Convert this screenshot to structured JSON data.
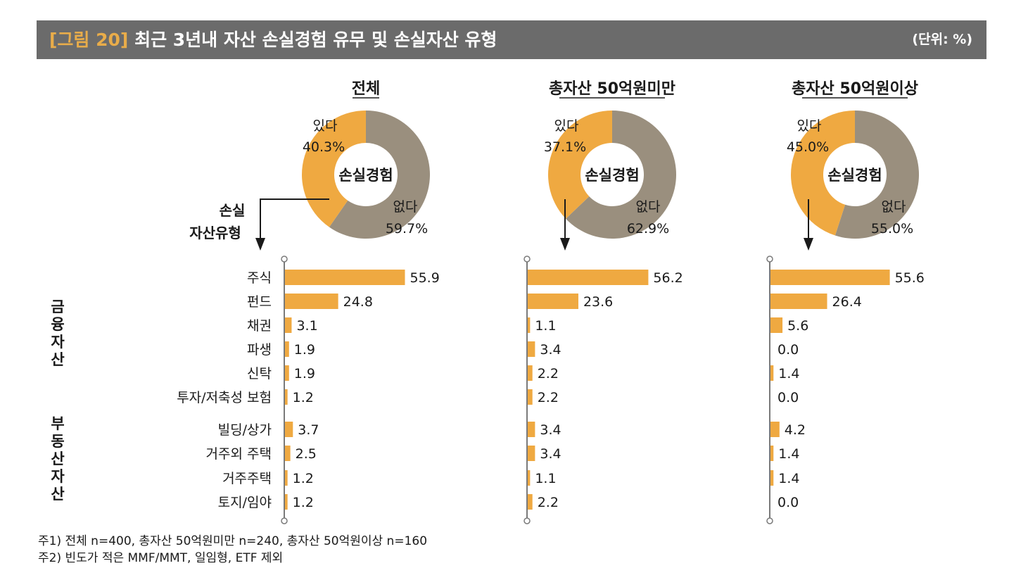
{
  "header": {
    "figure_label": "[그림 20]",
    "title": "최근 3년내 자산 손실경험 유무 및 손실자산 유형",
    "unit": "(단위: %)"
  },
  "colors": {
    "header_bg": "#6b6b6b",
    "figure_label": "#e8ac4a",
    "bar": "#efa941",
    "pie_yes": "#efa941",
    "pie_no": "#9a8f7e",
    "axis": "#7a7a7a"
  },
  "axis_label": "손실\n자산유형",
  "chart_data": {
    "type": "pie+bar",
    "panels": [
      {
        "title": "전체",
        "pie": {
          "center_label": "손실경험",
          "slices": [
            {
              "label": "있다",
              "value": 40.3,
              "text": "40.3%"
            },
            {
              "label": "없다",
              "value": 59.7,
              "text": "59.7%"
            }
          ]
        },
        "bars": [
          {
            "category": "주식",
            "value": 55.9,
            "label": "55.9"
          },
          {
            "category": "펀드",
            "value": 24.8,
            "label": "24.8"
          },
          {
            "category": "채권",
            "value": 3.1,
            "label": "3.1"
          },
          {
            "category": "파생",
            "value": 1.9,
            "label": "1.9"
          },
          {
            "category": "신탁",
            "value": 1.9,
            "label": "1.9"
          },
          {
            "category": "투자/저축성 보험",
            "value": 1.2,
            "label": "1.2"
          },
          {
            "category": "빌딩/상가",
            "value": 3.7,
            "label": "3.7"
          },
          {
            "category": "거주외 주택",
            "value": 2.5,
            "label": "2.5"
          },
          {
            "category": "거주주택",
            "value": 1.2,
            "label": "1.2"
          },
          {
            "category": "토지/임야",
            "value": 1.2,
            "label": "1.2"
          }
        ]
      },
      {
        "title": "총자산 50억원미만",
        "pie": {
          "center_label": "손실경험",
          "slices": [
            {
              "label": "있다",
              "value": 37.1,
              "text": "37.1%"
            },
            {
              "label": "없다",
              "value": 62.9,
              "text": "62.9%"
            }
          ]
        },
        "bars": [
          {
            "category": "주식",
            "value": 56.2,
            "label": "56.2"
          },
          {
            "category": "펀드",
            "value": 23.6,
            "label": "23.6"
          },
          {
            "category": "채권",
            "value": 1.1,
            "label": "1.1"
          },
          {
            "category": "파생",
            "value": 3.4,
            "label": "3.4"
          },
          {
            "category": "신탁",
            "value": 2.2,
            "label": "2.2"
          },
          {
            "category": "투자/저축성 보험",
            "value": 2.2,
            "label": "2.2"
          },
          {
            "category": "빌딩/상가",
            "value": 3.4,
            "label": "3.4"
          },
          {
            "category": "거주외 주택",
            "value": 3.4,
            "label": "3.4"
          },
          {
            "category": "거주주택",
            "value": 1.1,
            "label": "1.1"
          },
          {
            "category": "토지/임야",
            "value": 2.2,
            "label": "2.2"
          }
        ]
      },
      {
        "title": "총자산 50억원이상",
        "pie": {
          "center_label": "손실경험",
          "slices": [
            {
              "label": "있다",
              "value": 45.0,
              "text": "45.0%"
            },
            {
              "label": "없다",
              "value": 55.0,
              "text": "55.0%"
            }
          ]
        },
        "bars": [
          {
            "category": "주식",
            "value": 55.6,
            "label": "55.6"
          },
          {
            "category": "펀드",
            "value": 26.4,
            "label": "26.4"
          },
          {
            "category": "채권",
            "value": 5.6,
            "label": "5.6"
          },
          {
            "category": "파생",
            "value": 0.0,
            "label": "0.0"
          },
          {
            "category": "신탁",
            "value": 1.4,
            "label": "1.4"
          },
          {
            "category": "투자/저축성 보험",
            "value": 0.0,
            "label": "0.0"
          },
          {
            "category": "빌딩/상가",
            "value": 4.2,
            "label": "4.2"
          },
          {
            "category": "거주외 주택",
            "value": 1.4,
            "label": "1.4"
          },
          {
            "category": "거주주택",
            "value": 1.4,
            "label": "1.4"
          },
          {
            "category": "토지/임야",
            "value": 0.0,
            "label": "0.0"
          }
        ]
      }
    ],
    "groups": [
      {
        "name": "금융자산",
        "members": [
          "주식",
          "펀드",
          "채권",
          "파생",
          "신탁",
          "투자/저축성 보험"
        ]
      },
      {
        "name": "부동산자산",
        "members": [
          "빌딩/상가",
          "거주외 주택",
          "거주주택",
          "토지/임야"
        ]
      }
    ]
  },
  "notes": [
    "주1) 전체 n=400, 총자산 50억원미만 n=240, 총자산 50억원이상 n=160",
    "주2) 빈도가 적은  MMF/MMT, 일임형, ETF 제외"
  ]
}
